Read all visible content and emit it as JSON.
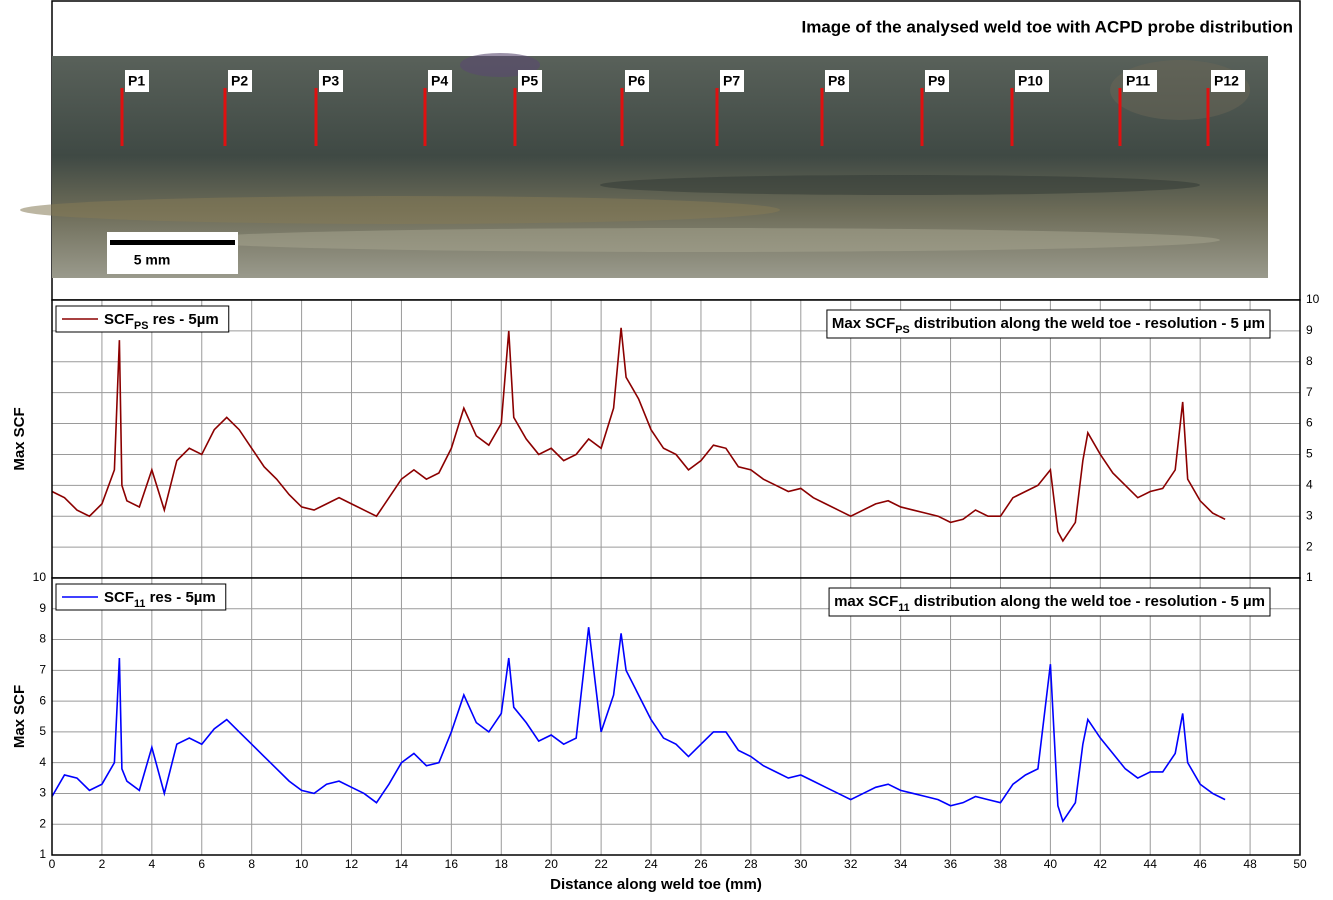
{
  "image": {
    "title": "Image of the analysed weld toe with ACPD probe distribution",
    "probes": [
      "P1",
      "P2",
      "P3",
      "P4",
      "P5",
      "P6",
      "P7",
      "P8",
      "P9",
      "P10",
      "P11",
      "P12"
    ],
    "scale_bar": "5 mm"
  },
  "chart_data": [
    {
      "type": "line",
      "title": [
        "Max SCF",
        "PS",
        " distribution along the weld toe - resolution - 5 µm"
      ],
      "y_label": "Max SCF",
      "xlim": [
        0,
        50
      ],
      "xticks": [
        0,
        2,
        4,
        6,
        8,
        10,
        12,
        14,
        16,
        18,
        20,
        22,
        24,
        26,
        28,
        30,
        32,
        34,
        36,
        38,
        40,
        42,
        44,
        46,
        48,
        50
      ],
      "ylim": [
        1,
        10
      ],
      "yticks": [
        1,
        2,
        3,
        4,
        5,
        6,
        7,
        8,
        9,
        10
      ],
      "y_axis_side": "right",
      "grid": true,
      "x": [
        0,
        0.5,
        1,
        1.5,
        2,
        2.5,
        2.7,
        2.8,
        3,
        3.5,
        4,
        4.5,
        5,
        5.5,
        6,
        6.5,
        7,
        7.5,
        8,
        8.5,
        9,
        9.5,
        10,
        10.5,
        11,
        11.5,
        12,
        12.5,
        13,
        13.5,
        14,
        14.5,
        15,
        15.5,
        16,
        16.5,
        17,
        17.5,
        18,
        18.3,
        18.5,
        19,
        19.5,
        20,
        20.5,
        21,
        21.5,
        22,
        22.5,
        22.8,
        23,
        23.5,
        24,
        24.5,
        25,
        25.5,
        26,
        26.5,
        27,
        27.5,
        28,
        28.5,
        29,
        29.5,
        30,
        30.5,
        31,
        31.5,
        32,
        32.5,
        33,
        33.5,
        34,
        34.5,
        35,
        35.5,
        36,
        36.5,
        37,
        37.5,
        38,
        38.5,
        39,
        39.5,
        40,
        40.3,
        40.5,
        41,
        41.3,
        41.5,
        42,
        42.5,
        43,
        43.5,
        44,
        44.5,
        45,
        45.3,
        45.5,
        46,
        46.5,
        47
      ],
      "series": [
        {
          "name": [
            "SCF",
            "PS",
            " res - 5µm"
          ],
          "color": "#8b0000",
          "values": [
            3.8,
            3.6,
            3.2,
            3.0,
            3.4,
            4.5,
            8.7,
            4.0,
            3.5,
            3.3,
            4.5,
            3.2,
            4.8,
            5.2,
            5.0,
            5.8,
            6.2,
            5.8,
            5.2,
            4.6,
            4.2,
            3.7,
            3.3,
            3.2,
            3.4,
            3.6,
            3.4,
            3.2,
            3.0,
            3.6,
            4.2,
            4.5,
            4.2,
            4.4,
            5.2,
            6.5,
            5.6,
            5.3,
            6.0,
            9.0,
            6.2,
            5.5,
            5.0,
            5.2,
            4.8,
            5.0,
            5.5,
            5.2,
            6.5,
            9.1,
            7.5,
            6.8,
            5.8,
            5.2,
            5.0,
            4.5,
            4.8,
            5.3,
            5.2,
            4.6,
            4.5,
            4.2,
            4.0,
            3.8,
            3.9,
            3.6,
            3.4,
            3.2,
            3.0,
            3.2,
            3.4,
            3.5,
            3.3,
            3.2,
            3.1,
            3.0,
            2.8,
            2.9,
            3.2,
            3.0,
            3.0,
            3.6,
            3.8,
            4.0,
            4.5,
            2.5,
            2.2,
            2.8,
            4.8,
            5.7,
            5.0,
            4.4,
            4.0,
            3.6,
            3.8,
            3.9,
            4.5,
            6.7,
            4.2,
            3.5,
            3.1,
            2.9
          ]
        }
      ]
    },
    {
      "type": "line",
      "title": [
        "max SCF",
        "11",
        " distribution along the weld toe - resolution - 5 µm"
      ],
      "y_label": "Max SCF",
      "x_label": "Distance along weld toe (mm)",
      "xlim": [
        0,
        50
      ],
      "xticks": [
        0,
        2,
        4,
        6,
        8,
        10,
        12,
        14,
        16,
        18,
        20,
        22,
        24,
        26,
        28,
        30,
        32,
        34,
        36,
        38,
        40,
        42,
        44,
        46,
        48,
        50
      ],
      "ylim": [
        1,
        10
      ],
      "yticks": [
        1,
        2,
        3,
        4,
        5,
        6,
        7,
        8,
        9,
        10
      ],
      "y_axis_side": "left",
      "grid": true,
      "x": [
        0,
        0.5,
        1,
        1.5,
        2,
        2.5,
        2.7,
        2.8,
        3,
        3.5,
        4,
        4.5,
        5,
        5.5,
        6,
        6.5,
        7,
        7.5,
        8,
        8.5,
        9,
        9.5,
        10,
        10.5,
        11,
        11.5,
        12,
        12.5,
        13,
        13.5,
        14,
        14.5,
        15,
        15.5,
        16,
        16.5,
        17,
        17.5,
        18,
        18.3,
        18.5,
        19,
        19.5,
        20,
        20.5,
        21,
        21.5,
        22,
        22.5,
        22.8,
        23,
        23.5,
        24,
        24.5,
        25,
        25.5,
        26,
        26.5,
        27,
        27.5,
        28,
        28.5,
        29,
        29.5,
        30,
        30.5,
        31,
        31.5,
        32,
        32.5,
        33,
        33.5,
        34,
        34.5,
        35,
        35.5,
        36,
        36.5,
        37,
        37.5,
        38,
        38.5,
        39,
        39.5,
        40,
        40.3,
        40.5,
        41,
        41.3,
        41.5,
        42,
        42.5,
        43,
        43.5,
        44,
        44.5,
        45,
        45.3,
        45.5,
        46,
        46.5,
        47
      ],
      "series": [
        {
          "name": [
            "SCF",
            "11",
            " res - 5µm"
          ],
          "color": "#0000ff",
          "values": [
            2.9,
            3.6,
            3.5,
            3.1,
            3.3,
            4.0,
            7.4,
            3.8,
            3.4,
            3.1,
            4.5,
            3.0,
            4.6,
            4.8,
            4.6,
            5.1,
            5.4,
            5.0,
            4.6,
            4.2,
            3.8,
            3.4,
            3.1,
            3.0,
            3.3,
            3.4,
            3.2,
            3.0,
            2.7,
            3.3,
            4.0,
            4.3,
            3.9,
            4.0,
            5.0,
            6.2,
            5.3,
            5.0,
            5.6,
            7.4,
            5.8,
            5.3,
            4.7,
            4.9,
            4.6,
            4.8,
            8.4,
            5.0,
            6.2,
            8.2,
            7.0,
            6.2,
            5.4,
            4.8,
            4.6,
            4.2,
            4.6,
            5.0,
            5.0,
            4.4,
            4.2,
            3.9,
            3.7,
            3.5,
            3.6,
            3.4,
            3.2,
            3.0,
            2.8,
            3.0,
            3.2,
            3.3,
            3.1,
            3.0,
            2.9,
            2.8,
            2.6,
            2.7,
            2.9,
            2.8,
            2.7,
            3.3,
            3.6,
            3.8,
            7.2,
            2.6,
            2.1,
            2.7,
            4.6,
            5.4,
            4.8,
            4.3,
            3.8,
            3.5,
            3.7,
            3.7,
            4.3,
            5.6,
            4.0,
            3.3,
            3.0,
            2.8
          ]
        }
      ]
    }
  ]
}
